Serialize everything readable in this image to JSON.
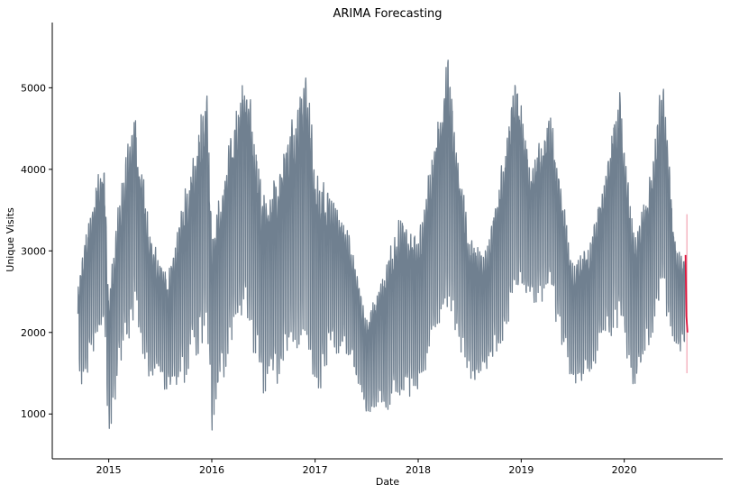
{
  "chart_data": {
    "type": "line",
    "title": "ARIMA Forecasting",
    "xlabel": "Date",
    "ylabel": "Unique Visits",
    "x_ticks": [
      "2015",
      "2016",
      "2017",
      "2018",
      "2019",
      "2020"
    ],
    "y_ticks": [
      1000,
      2000,
      3000,
      4000,
      5000
    ],
    "xlim": [
      "2014-06-15",
      "2020-12-15"
    ],
    "ylim": [
      450,
      5800
    ],
    "grid": false,
    "series": [
      {
        "role": "observed",
        "color": "#708090",
        "x_start": "2014-09-14",
        "x_end": "2020-08-05",
        "approx_weekly_upper_envelope": [
          [
            "2014-09-14",
            2600
          ],
          [
            "2014-10-01",
            3100
          ],
          [
            "2014-11-01",
            3700
          ],
          [
            "2014-12-15",
            4300
          ],
          [
            "2015-01-01",
            2500
          ],
          [
            "2015-02-01",
            3600
          ],
          [
            "2015-04-01",
            4900
          ],
          [
            "2015-06-01",
            3200
          ],
          [
            "2015-08-01",
            2800
          ],
          [
            "2015-10-01",
            3900
          ],
          [
            "2015-12-15",
            5100
          ],
          [
            "2016-01-01",
            3300
          ],
          [
            "2016-03-01",
            4500
          ],
          [
            "2016-05-01",
            5400
          ],
          [
            "2016-07-01",
            3800
          ],
          [
            "2016-09-01",
            4200
          ],
          [
            "2016-12-01",
            5450
          ],
          [
            "2017-01-01",
            4200
          ],
          [
            "2017-03-01",
            3800
          ],
          [
            "2017-05-01",
            3300
          ],
          [
            "2017-07-01",
            2200
          ],
          [
            "2017-09-01",
            2800
          ],
          [
            "2017-11-01",
            3600
          ],
          [
            "2018-01-01",
            3300
          ],
          [
            "2018-03-01",
            4500
          ],
          [
            "2018-04-15",
            5500
          ],
          [
            "2018-07-01",
            3200
          ],
          [
            "2018-09-01",
            3100
          ],
          [
            "2018-11-01",
            4300
          ],
          [
            "2018-12-15",
            5400
          ],
          [
            "2019-02-01",
            4100
          ],
          [
            "2019-04-15",
            4800
          ],
          [
            "2019-07-01",
            2900
          ],
          [
            "2019-09-01",
            3200
          ],
          [
            "2019-11-01",
            4200
          ],
          [
            "2019-12-15",
            5200
          ],
          [
            "2020-02-01",
            3400
          ],
          [
            "2020-04-01",
            4000
          ],
          [
            "2020-05-15",
            5300
          ],
          [
            "2020-07-01",
            3100
          ],
          [
            "2020-08-05",
            3000
          ]
        ],
        "approx_weekly_lower_envelope": [
          [
            "2014-09-14",
            1550
          ],
          [
            "2014-10-01",
            1150
          ],
          [
            "2014-11-01",
            1600
          ],
          [
            "2014-12-15",
            1900
          ],
          [
            "2015-01-01",
            650
          ],
          [
            "2015-02-01",
            1250
          ],
          [
            "2015-04-01",
            2000
          ],
          [
            "2015-06-01",
            1300
          ],
          [
            "2015-08-01",
            1150
          ],
          [
            "2015-10-01",
            1300
          ],
          [
            "2015-12-15",
            1900
          ],
          [
            "2016-01-01",
            700
          ],
          [
            "2016-03-01",
            1600
          ],
          [
            "2016-05-01",
            2000
          ],
          [
            "2016-07-01",
            1100
          ],
          [
            "2016-09-01",
            1300
          ],
          [
            "2016-12-01",
            1900
          ],
          [
            "2017-01-01",
            850
          ],
          [
            "2017-03-01",
            1700
          ],
          [
            "2017-05-01",
            1600
          ],
          [
            "2017-07-01",
            950
          ],
          [
            "2017-09-01",
            950
          ],
          [
            "2017-11-01",
            1050
          ],
          [
            "2018-01-01",
            1000
          ],
          [
            "2018-03-01",
            1800
          ],
          [
            "2018-04-15",
            2200
          ],
          [
            "2018-07-01",
            1300
          ],
          [
            "2018-09-01",
            1450
          ],
          [
            "2018-11-01",
            1800
          ],
          [
            "2018-12-15",
            2300
          ],
          [
            "2019-02-01",
            2200
          ],
          [
            "2019-04-15",
            2300
          ],
          [
            "2019-07-01",
            1300
          ],
          [
            "2019-09-01",
            1350
          ],
          [
            "2019-11-01",
            1800
          ],
          [
            "2019-12-15",
            2000
          ],
          [
            "2020-02-01",
            1050
          ],
          [
            "2020-04-01",
            1800
          ],
          [
            "2020-05-15",
            2300
          ],
          [
            "2020-07-01",
            1700
          ],
          [
            "2020-08-05",
            1750
          ]
        ]
      },
      {
        "role": "forecast",
        "color": "#dc143c",
        "x_start": "2020-08-05",
        "x_end": "2020-08-12",
        "values": [
          2950,
          2200,
          2000
        ]
      },
      {
        "role": "confidence_interval",
        "color": "#f4b6c2",
        "x": "2020-08-10",
        "lower": 1500,
        "upper": 3450
      }
    ]
  }
}
